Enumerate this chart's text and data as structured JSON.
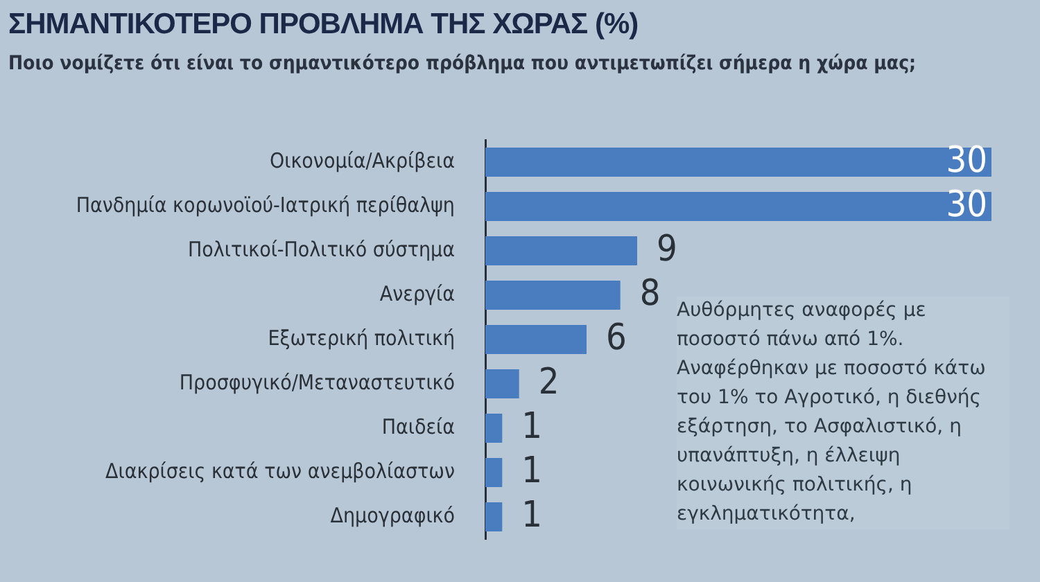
{
  "chart_data": {
    "type": "bar",
    "orientation": "horizontal",
    "title": "ΣΗΜΑΝΤΙΚΟΤΕΡΟ ΠΡΟΒΛΗΜΑ ΤΗΣ ΧΩΡΑΣ (%)",
    "subtitle": "Ποιο νομίζετε ότι είναι το σημαντικότερο πρόβλημα που αντιμετωπίζει σήμερα η χώρα μας;",
    "categories": [
      "Οικονομία/Ακρίβεια",
      "Πανδημία κορωνοϊού-Ιατρική περίθαλψη",
      "Πολιτικοί-Πολιτικό σύστημα",
      "Ανεργία",
      "Εξωτερική πολιτική",
      "Προσφυγικό/Μεταναστευτικό",
      "Παιδεία",
      "Διακρίσεις κατά των ανεμβολίαστων",
      "Δημογραφικό"
    ],
    "values": [
      30,
      30,
      9,
      8,
      6,
      2,
      1,
      1,
      1
    ],
    "color": "#4a7cc0",
    "xlim": [
      0,
      30
    ],
    "tick_labels": "y",
    "data_labels": true,
    "annotations": [
      "Αυθόρμητες αναφορές με ποσοστό πάνω από 1%. Αναφέρθηκαν με ποσοστό κάτω του 1% το Αγροτικό, η διεθνής εξάρτηση, το Ασφαλιστικό, η υπανάπτυξη, η έλλειψη κοινωνικής πολιτικής, η εγκληματικότητα,"
    ]
  }
}
